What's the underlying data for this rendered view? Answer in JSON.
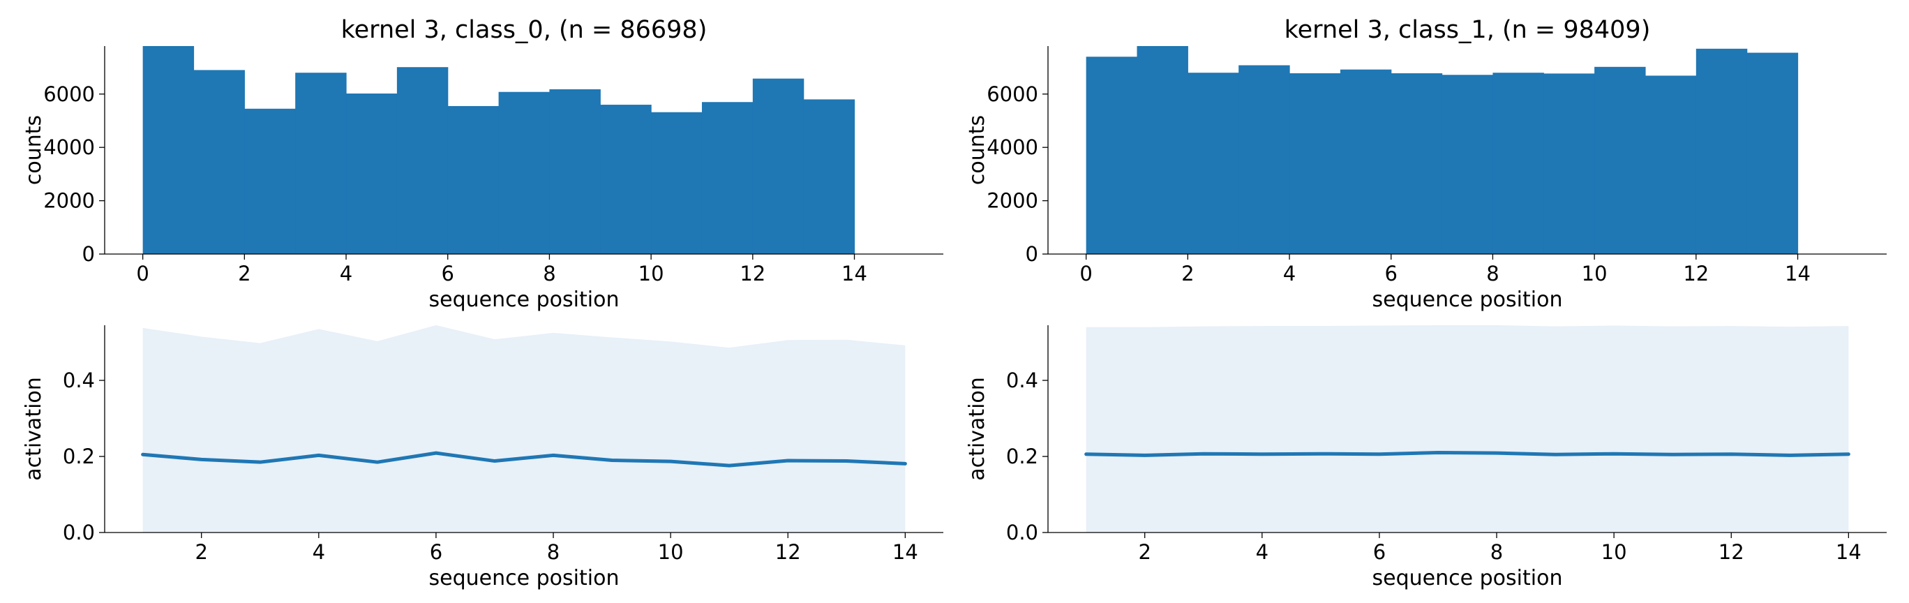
{
  "chart_data": [
    {
      "type": "bar",
      "title": "kernel 3, class_0, (n = 86698)",
      "xlabel": "sequence position",
      "ylabel": "counts",
      "xlim": [
        -0.75,
        15.75
      ],
      "ylim": [
        0,
        7800
      ],
      "xticks": [
        0,
        2,
        4,
        6,
        8,
        10,
        12,
        14
      ],
      "yticks": [
        0,
        2000,
        4000,
        6000
      ],
      "bin_edges": [
        0,
        1,
        2,
        3,
        4,
        5,
        6,
        7,
        8,
        9,
        10,
        11,
        12,
        13,
        14
      ],
      "values": [
        7800,
        6900,
        5450,
        6800,
        6020,
        7010,
        5550,
        6080,
        6180,
        5600,
        5320,
        5700,
        6580,
        5800
      ],
      "color": "#1f77b4",
      "grid": false
    },
    {
      "type": "bar",
      "title": "kernel 3, class_1, (n = 98409)",
      "xlabel": "sequence position",
      "ylabel": "counts",
      "xlim": [
        -0.75,
        15.75
      ],
      "ylim": [
        0,
        7800
      ],
      "xticks": [
        0,
        2,
        4,
        6,
        8,
        10,
        12,
        14
      ],
      "yticks": [
        0,
        2000,
        4000,
        6000
      ],
      "bin_edges": [
        0,
        1,
        2,
        3,
        4,
        5,
        6,
        7,
        8,
        9,
        10,
        11,
        12,
        13,
        14
      ],
      "values": [
        7400,
        7800,
        6800,
        7080,
        6780,
        6920,
        6780,
        6720,
        6800,
        6770,
        7020,
        6690,
        7700,
        7550
      ],
      "color": "#1f77b4",
      "grid": false
    },
    {
      "type": "area",
      "title": "",
      "xlabel": "sequence position",
      "ylabel": "activation",
      "xlim": [
        0.35,
        14.65
      ],
      "ylim": [
        0,
        0.545
      ],
      "xticks": [
        2,
        4,
        6,
        8,
        10,
        12,
        14
      ],
      "yticks": [
        0.0,
        0.2,
        0.4
      ],
      "ytick_labels": [
        "0.0",
        "0.2",
        "0.4"
      ],
      "x": [
        1,
        2,
        3,
        4,
        5,
        6,
        7,
        8,
        9,
        10,
        11,
        12,
        13,
        14
      ],
      "series": [
        {
          "values": [
            0.205,
            0.192,
            0.185,
            0.203,
            0.185,
            0.209,
            0.188,
            0.203,
            0.19,
            0.187,
            0.176,
            0.189,
            0.188,
            0.181
          ]
        }
      ],
      "band_upper": [
        0.538,
        0.515,
        0.498,
        0.535,
        0.503,
        0.545,
        0.508,
        0.525,
        0.513,
        0.502,
        0.486,
        0.506,
        0.507,
        0.492
      ],
      "band_lower": [
        0,
        0,
        0,
        0,
        0,
        0,
        0,
        0,
        0,
        0,
        0,
        0,
        0,
        0
      ],
      "line_color": "#1f77b4",
      "band_color": "#e8f0f8",
      "grid": false
    },
    {
      "type": "area",
      "title": "",
      "xlabel": "sequence position",
      "ylabel": "activation",
      "xlim": [
        0.35,
        14.65
      ],
      "ylim": [
        0,
        0.545
      ],
      "xticks": [
        2,
        4,
        6,
        8,
        10,
        12,
        14
      ],
      "yticks": [
        0.0,
        0.2,
        0.4
      ],
      "ytick_labels": [
        "0.0",
        "0.2",
        "0.4"
      ],
      "x": [
        1,
        2,
        3,
        4,
        5,
        6,
        7,
        8,
        9,
        10,
        11,
        12,
        13,
        14
      ],
      "series": [
        {
          "values": [
            0.206,
            0.203,
            0.207,
            0.206,
            0.207,
            0.206,
            0.21,
            0.209,
            0.205,
            0.207,
            0.205,
            0.206,
            0.203,
            0.206
          ]
        }
      ],
      "band_upper": [
        0.54,
        0.54,
        0.542,
        0.543,
        0.543,
        0.544,
        0.545,
        0.545,
        0.542,
        0.544,
        0.542,
        0.543,
        0.541,
        0.543
      ],
      "band_lower": [
        0,
        0,
        0,
        0,
        0,
        0,
        0,
        0,
        0,
        0,
        0,
        0,
        0,
        0
      ],
      "line_color": "#1f77b4",
      "band_color": "#e8f0f8",
      "grid": false
    }
  ]
}
